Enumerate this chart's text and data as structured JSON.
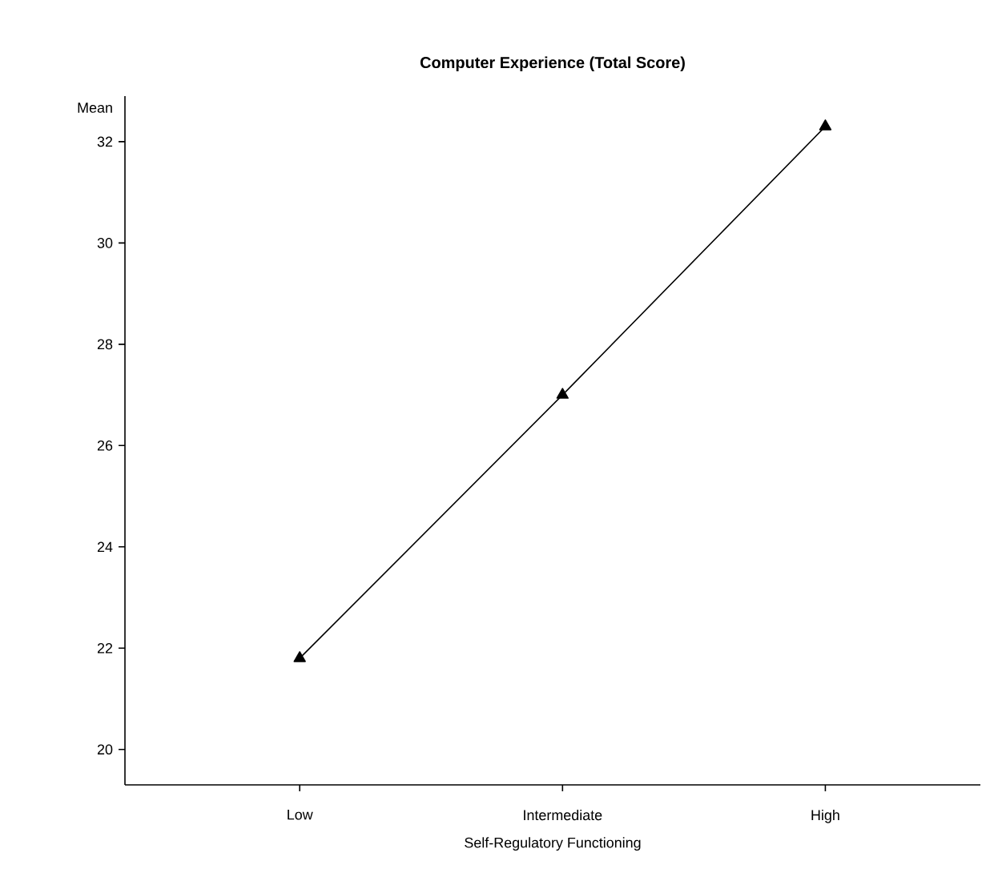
{
  "chart_data": {
    "type": "line",
    "title": "Computer Experience (Total Score)",
    "xlabel": "Self-Regulatory Functioning",
    "ylabel": "Mean",
    "categories": [
      "Low",
      "Intermediate",
      "High"
    ],
    "values": [
      21.8,
      27.0,
      32.3
    ],
    "color": "#000000",
    "marker": "triangle",
    "line_style": "solid",
    "grid": false,
    "ylim": [
      19.3,
      32.9
    ],
    "yticks": [
      20,
      22,
      24,
      26,
      28,
      30,
      32
    ]
  }
}
